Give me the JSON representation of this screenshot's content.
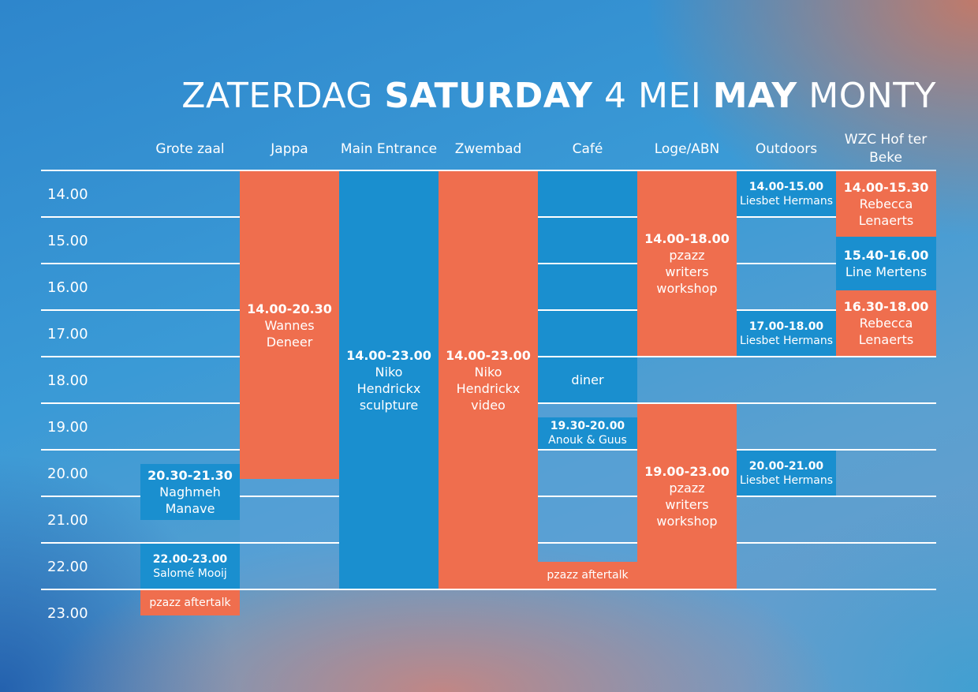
{
  "title": {
    "p1": "ZATERDAG",
    "p2": "SATURDAY",
    "p3": "4 MEI",
    "p4": "MAY",
    "p5": "MONTY"
  },
  "columns": [
    "Grote zaal",
    "Jappa",
    "Main Entrance",
    "Zwembad",
    "Café",
    "Loge/ABN",
    "Outdoors",
    "WZC Hof ter Beke"
  ],
  "times": [
    "14.00",
    "15.00",
    "16.00",
    "17.00",
    "18.00",
    "19.00",
    "20.00",
    "21.00",
    "22.00",
    "23.00"
  ],
  "colors": {
    "orange": "#ef6e4e",
    "blue": "#1a8fcf"
  },
  "events": [
    {
      "venue": "Jappa",
      "time": "14.00-20.30",
      "name": "Wannes Deneer"
    },
    {
      "venue": "Main Entrance",
      "time": "14.00-23.00",
      "name": "Niko Hendrickx sculpture"
    },
    {
      "venue": "Zwembad",
      "time": "14.00-23.00",
      "name": "Niko Hendrickx video"
    },
    {
      "venue": "Café",
      "time": "",
      "name": "diner"
    },
    {
      "venue": "Café",
      "time": "19.30-20.00",
      "name": "Anouk & Guus"
    },
    {
      "venue": "Café",
      "time": "",
      "name": "pzazz aftertalk"
    },
    {
      "venue": "Loge/ABN",
      "time": "14.00-18.00",
      "name": "pzazz writers workshop"
    },
    {
      "venue": "Loge/ABN",
      "time": "19.00-23.00",
      "name": "pzazz writers workshop"
    },
    {
      "venue": "Outdoors",
      "time": "14.00-15.00",
      "name": "Liesbet Hermans"
    },
    {
      "venue": "Outdoors",
      "time": "17.00-18.00",
      "name": "Liesbet Hermans"
    },
    {
      "venue": "Outdoors",
      "time": "20.00-21.00",
      "name": "Liesbet Hermans"
    },
    {
      "venue": "WZC Hof ter Beke",
      "time": "14.00-15.30",
      "name": "Rebecca Lenaerts"
    },
    {
      "venue": "WZC Hof ter Beke",
      "time": "15.40-16.00",
      "name": "Line Mertens"
    },
    {
      "venue": "WZC Hof ter Beke",
      "time": "16.30-18.00",
      "name": "Rebecca Lenaerts"
    },
    {
      "venue": "Grote zaal",
      "time": "20.30-21.30",
      "name": "Naghmeh Manave"
    },
    {
      "venue": "Grote zaal",
      "time": "22.00-23.00",
      "name": "Salomé Mooij"
    },
    {
      "venue": "Grote zaal",
      "time": "",
      "name": "pzazz aftertalk"
    }
  ]
}
